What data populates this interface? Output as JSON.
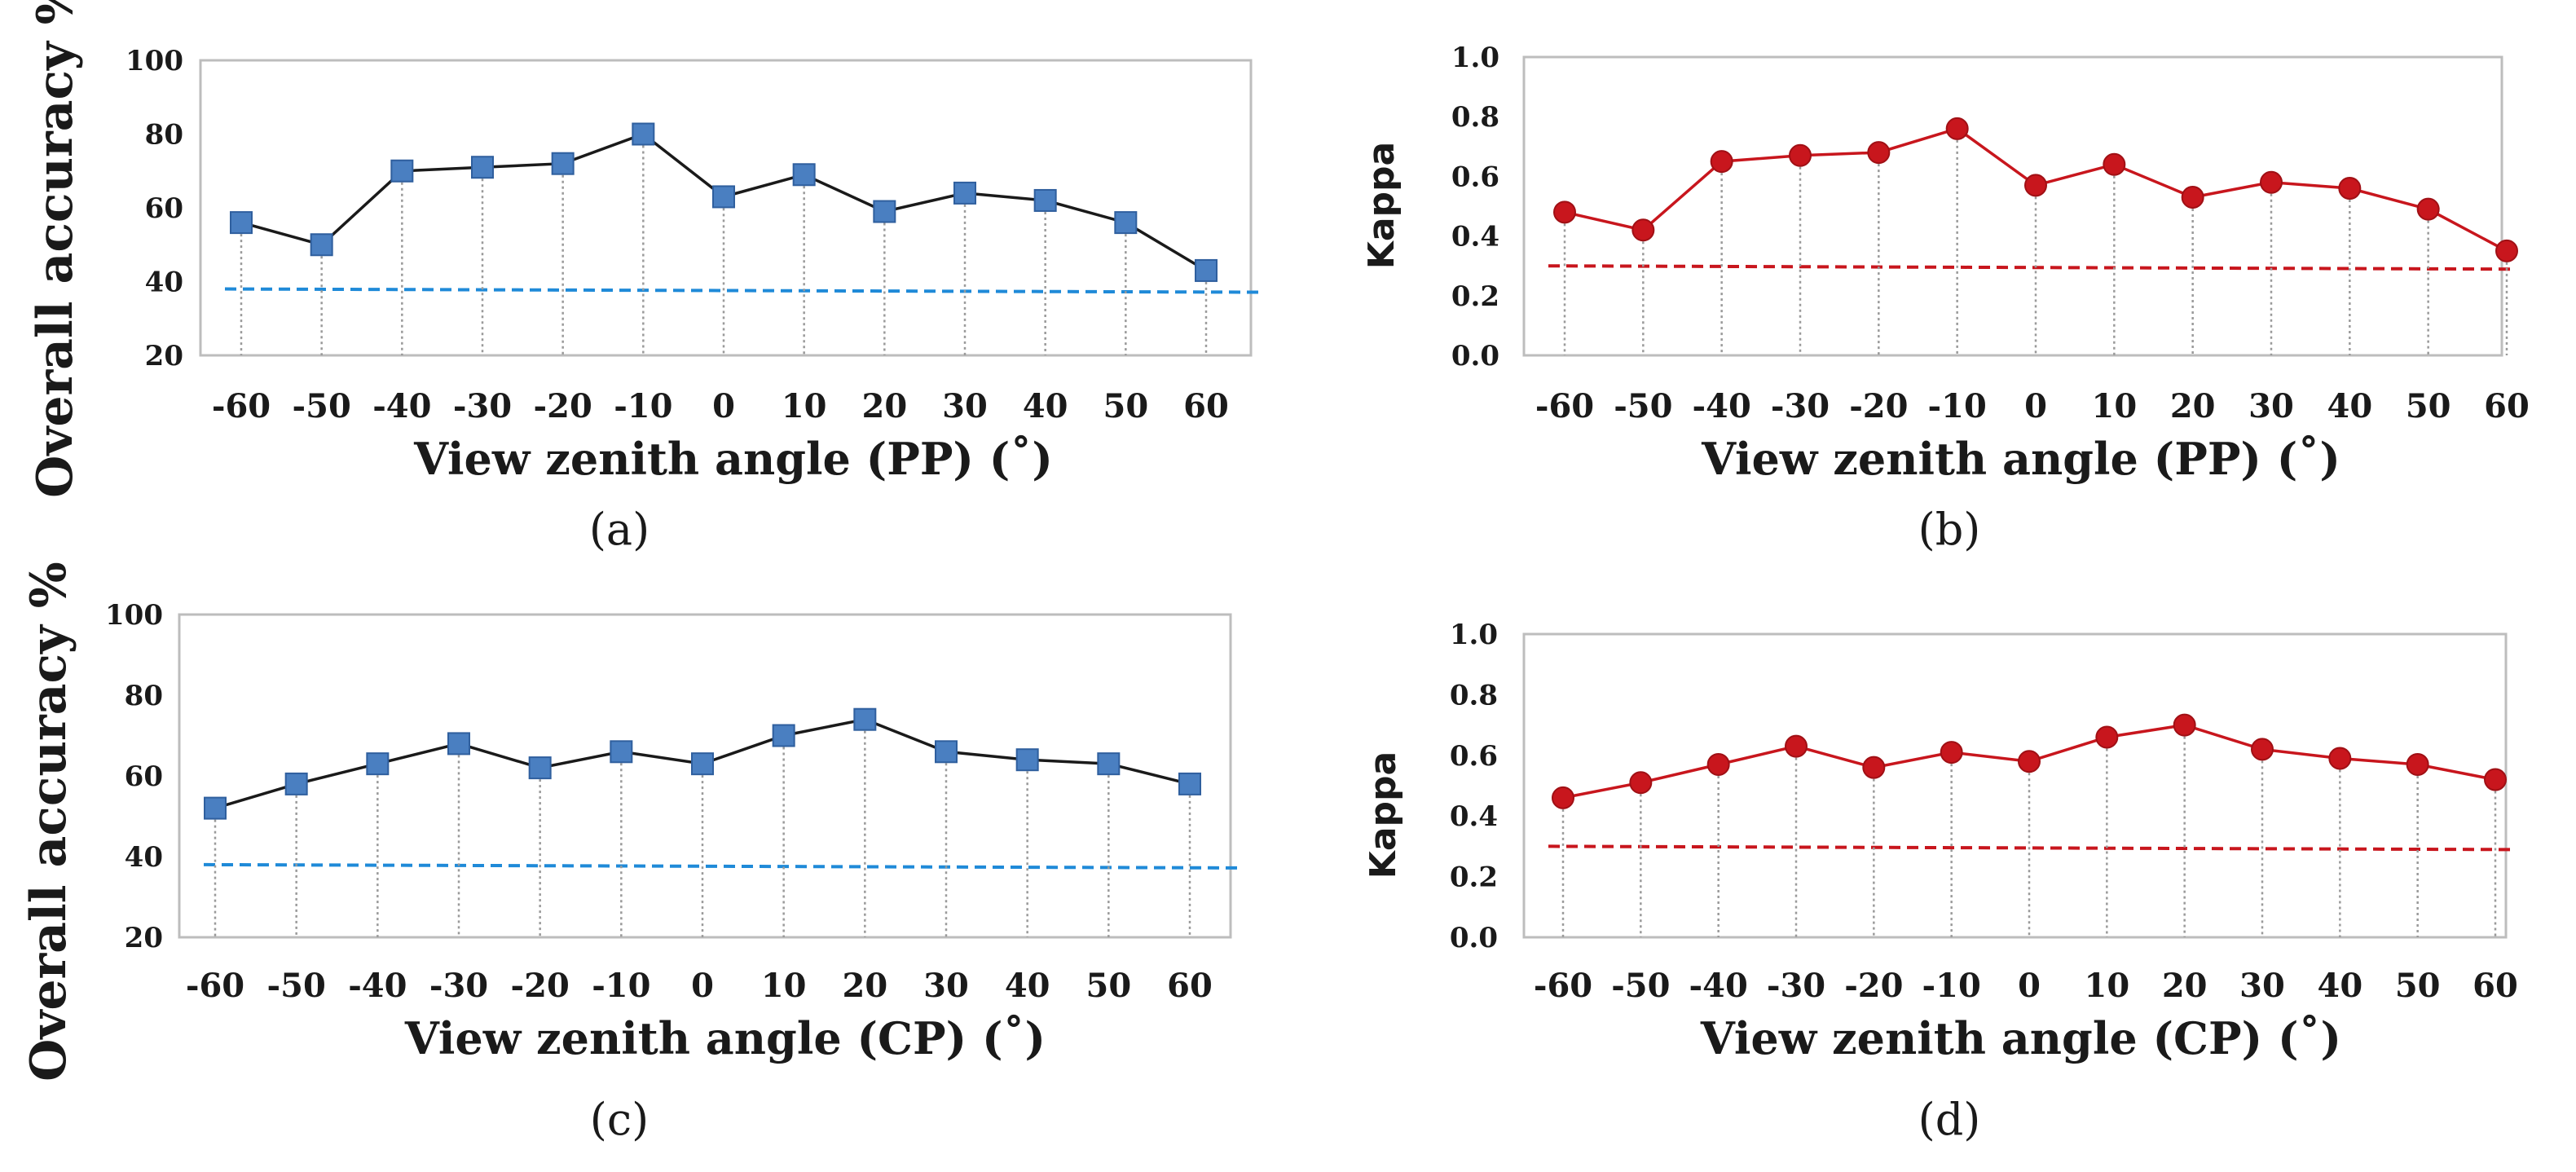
{
  "figure": {
    "type": "2x2 panel figure"
  },
  "chart_data": [
    {
      "panel": "a",
      "type": "line",
      "caption": "(a)",
      "xlabel": "View zenith angle (PP) (˚)",
      "ylabel": "Overall accuracy %",
      "categories": [
        "-60",
        "-50",
        "-40",
        "-30",
        "-20",
        "-10",
        "0",
        "10",
        "20",
        "30",
        "40",
        "50",
        "60"
      ],
      "series": [
        {
          "name": "Overall accuracy",
          "values": [
            56,
            50,
            70,
            71,
            72,
            80,
            63,
            69,
            59,
            64,
            62,
            56,
            43
          ],
          "color": "#4a7fc1",
          "line_color": "#1a1a1a",
          "marker": "square"
        }
      ],
      "reference_line": {
        "value": 38,
        "color": "#1f8ad8",
        "style": "dashed"
      },
      "ylim": [
        20,
        100
      ],
      "yticks": [
        "20",
        "40",
        "60",
        "80",
        "100"
      ],
      "grid": false
    },
    {
      "panel": "b",
      "type": "line",
      "caption": "(b)",
      "xlabel": "View zenith angle (PP) (˚)",
      "ylabel": "Kappa",
      "categories": [
        "-60",
        "-50",
        "-40",
        "-30",
        "-20",
        "-10",
        "0",
        "10",
        "20",
        "30",
        "40",
        "50",
        "60"
      ],
      "series": [
        {
          "name": "Kappa",
          "values": [
            0.48,
            0.42,
            0.65,
            0.67,
            0.68,
            0.76,
            0.57,
            0.64,
            0.53,
            0.58,
            0.56,
            0.49,
            0.35
          ],
          "color": "#c8161d",
          "line_color": "#c8161d",
          "marker": "circle"
        }
      ],
      "reference_line": {
        "value": 0.3,
        "color": "#c8161d",
        "style": "dashed"
      },
      "ylim": [
        0.0,
        1.0
      ],
      "yticks": [
        "0.0",
        "0.2",
        "0.4",
        "0.6",
        "0.8",
        "1.0"
      ],
      "grid": false
    },
    {
      "panel": "c",
      "type": "line",
      "caption": "(c)",
      "xlabel": "View zenith angle (CP) (˚)",
      "ylabel": "Overall accuracy %",
      "categories": [
        "-60",
        "-50",
        "-40",
        "-30",
        "-20",
        "-10",
        "0",
        "10",
        "20",
        "30",
        "40",
        "50",
        "60"
      ],
      "series": [
        {
          "name": "Overall accuracy",
          "values": [
            52,
            58,
            63,
            68,
            62,
            66,
            63,
            70,
            74,
            66,
            64,
            63,
            58
          ],
          "color": "#4a7fc1",
          "line_color": "#1a1a1a",
          "marker": "square"
        }
      ],
      "reference_line": {
        "value": 38,
        "color": "#1f8ad8",
        "style": "dashed"
      },
      "ylim": [
        20,
        100
      ],
      "yticks": [
        "20",
        "40",
        "60",
        "80",
        "100"
      ],
      "grid": false
    },
    {
      "panel": "d",
      "type": "line",
      "caption": "(d)",
      "xlabel": "View zenith angle (CP) (˚)",
      "ylabel": "Kappa",
      "categories": [
        "-60",
        "-50",
        "-40",
        "-30",
        "-20",
        "-10",
        "0",
        "10",
        "20",
        "30",
        "40",
        "50",
        "60"
      ],
      "series": [
        {
          "name": "Kappa",
          "values": [
            0.46,
            0.51,
            0.57,
            0.63,
            0.56,
            0.61,
            0.58,
            0.66,
            0.7,
            0.62,
            0.59,
            0.57,
            0.52
          ],
          "color": "#c8161d",
          "line_color": "#c8161d",
          "marker": "circle"
        }
      ],
      "reference_line": {
        "value": 0.3,
        "color": "#c8161d",
        "style": "dashed"
      },
      "ylim": [
        0.0,
        1.0
      ],
      "yticks": [
        "0.0",
        "0.2",
        "0.4",
        "0.6",
        "0.8",
        "1.0"
      ],
      "grid": false
    }
  ]
}
